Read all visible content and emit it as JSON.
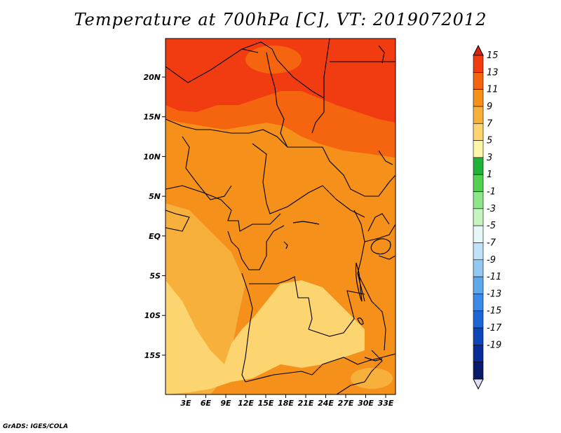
{
  "title": "Temperature at 700hPa [C], VT: 2019072012",
  "credit": "GrADS: IGES/COLA",
  "map": {
    "lon_labels": [
      "3E",
      "6E",
      "9E",
      "12E",
      "15E",
      "18E",
      "21E",
      "24E",
      "27E",
      "30E",
      "33E"
    ],
    "lat_labels": [
      "20N",
      "15N",
      "10N",
      "5N",
      "EQ",
      "5S",
      "10S",
      "15S"
    ]
  },
  "colorbar": {
    "labels": [
      "15",
      "13",
      "11",
      "9",
      "7",
      "5",
      "3",
      "1",
      "-1",
      "-3",
      "-5",
      "-7",
      "-9",
      "-11",
      "-13",
      "-15",
      "-17",
      "-19"
    ],
    "colors": [
      "#d42510",
      "#f03c10",
      "#f5640f",
      "#f5901a",
      "#f8b03c",
      "#fcd470",
      "#fdf5a8",
      "#21b23a",
      "#53d050",
      "#8ee68a",
      "#c6f4c0",
      "#e6f8f6",
      "#bfe2f8",
      "#93c8f2",
      "#5fa8ec",
      "#3a8ae6",
      "#1e66d6",
      "#0c46b8",
      "#0a2c98",
      "#0a1a6a",
      "#e0e0f5"
    ]
  },
  "regions": {
    "north_zone": {
      "color": "#f03c10"
    },
    "north_band": {
      "color": "#f5640f"
    },
    "central_band": {
      "color": "#f5901a"
    },
    "south_west": {
      "color": "#f8b03c"
    },
    "south_pale": {
      "color": "#fcd470"
    }
  }
}
